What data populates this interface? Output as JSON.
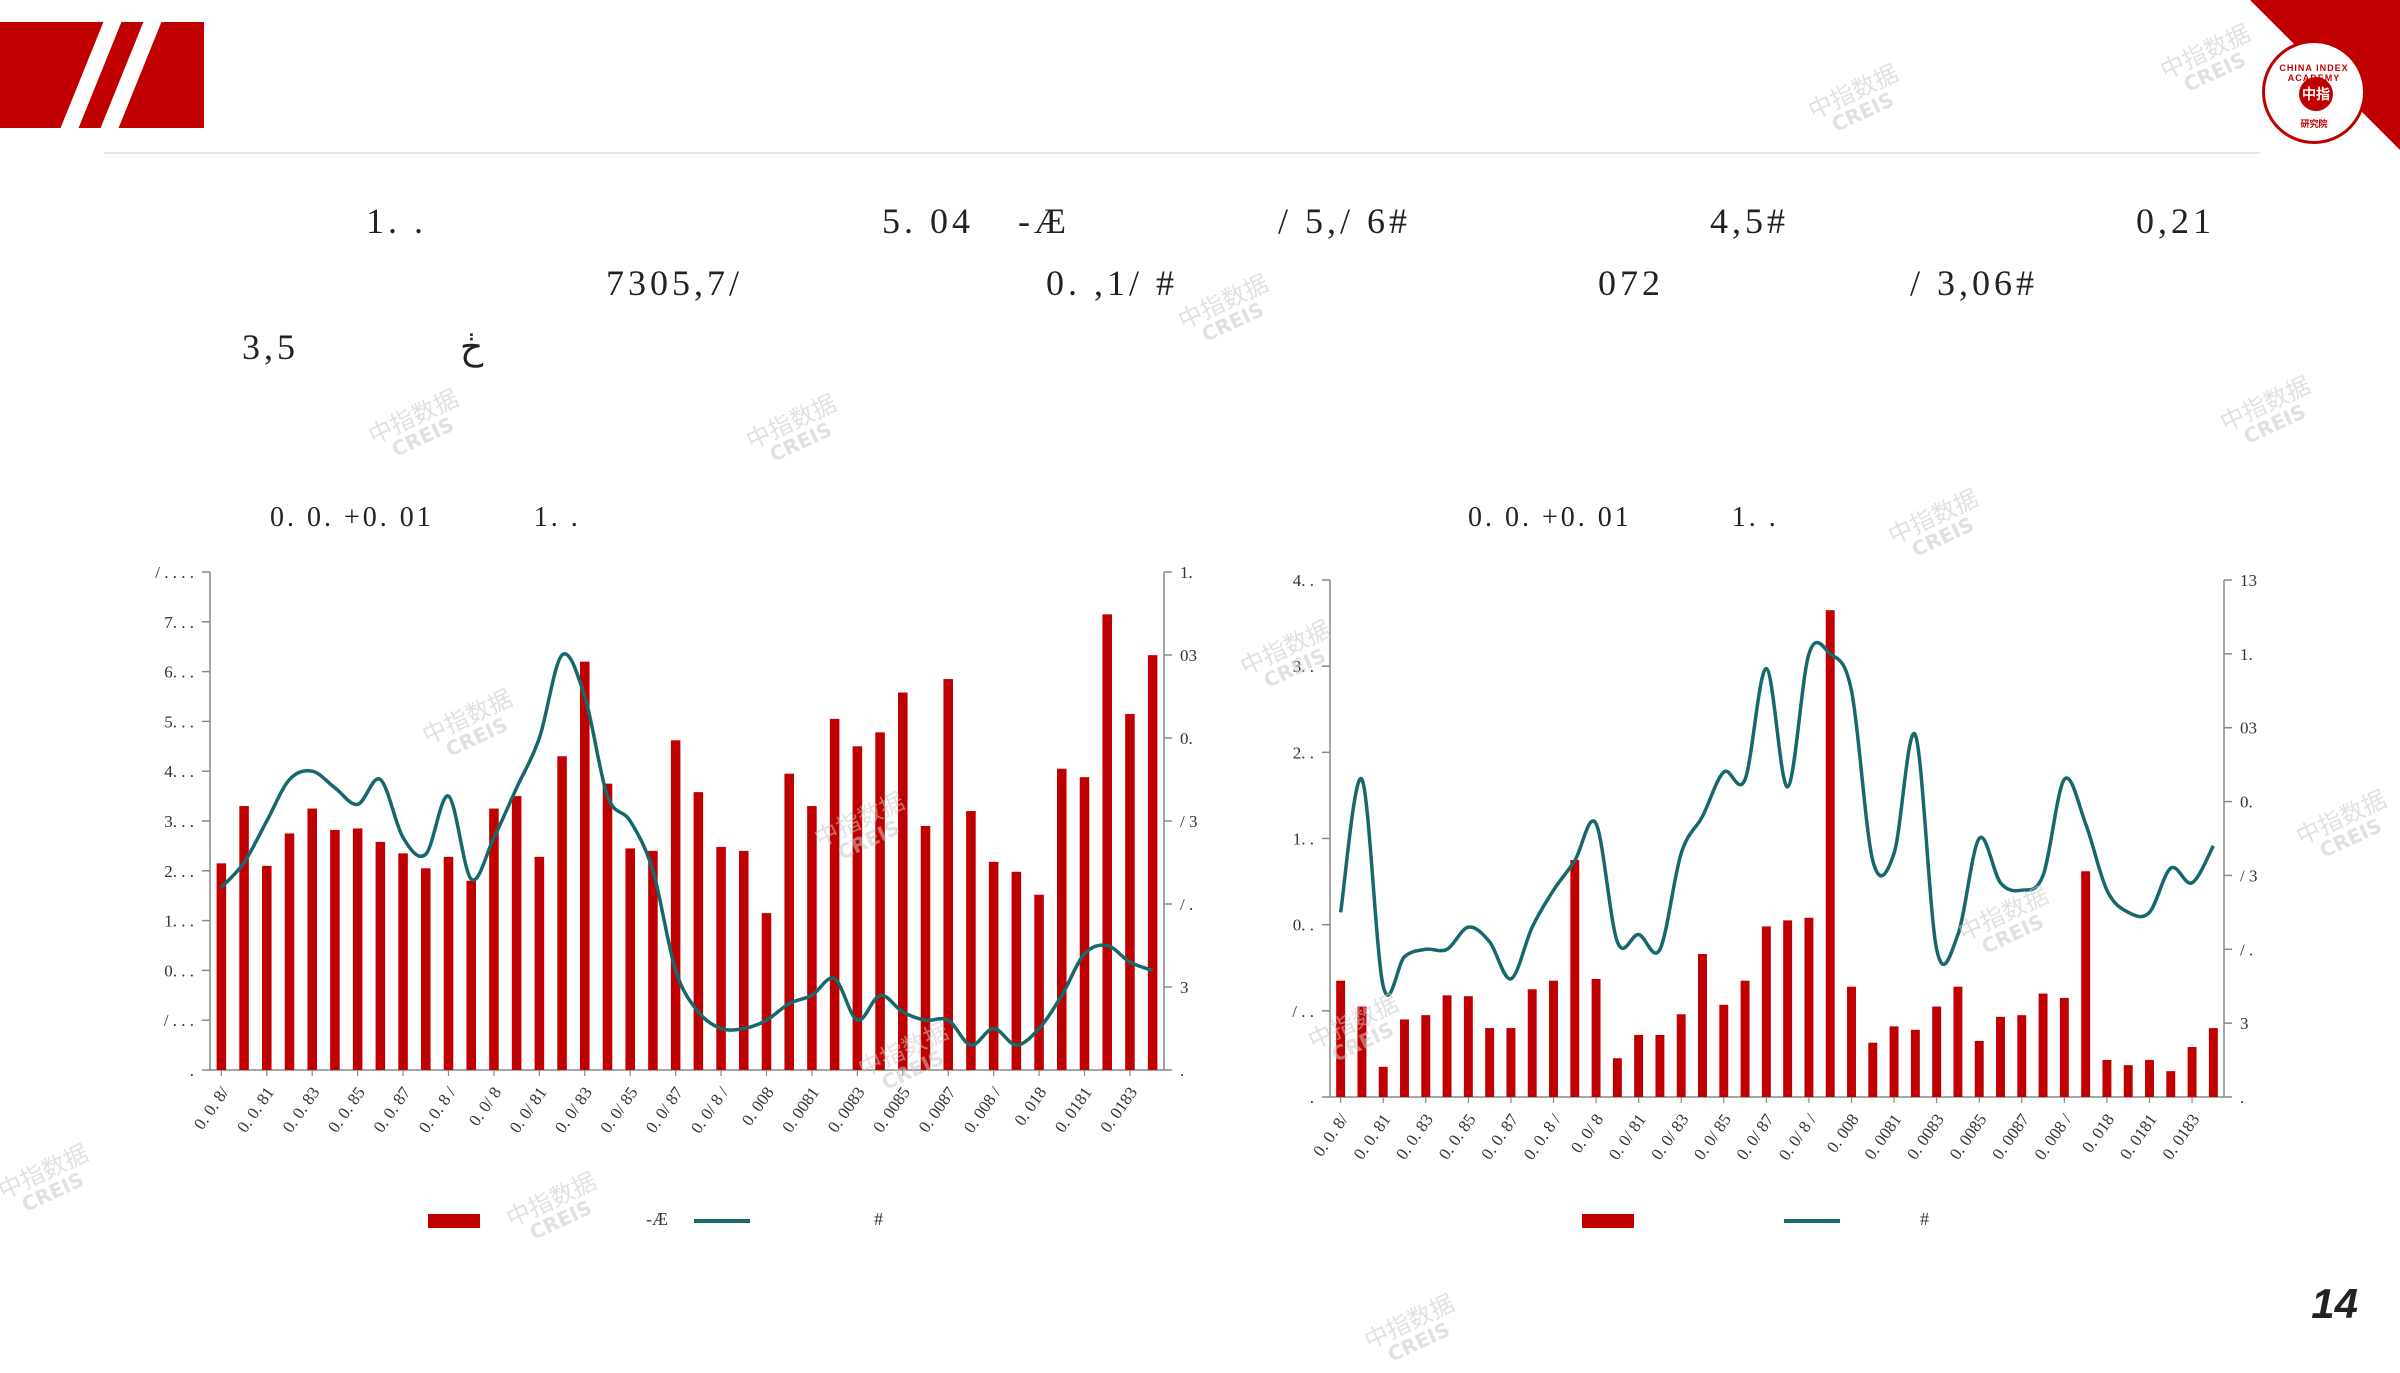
{
  "page": {
    "paragraph": [
      {
        "text": "1. .",
        "line": 0,
        "col": 0
      },
      {
        "text": "5. 04",
        "line": 0,
        "col": 1
      },
      {
        "text": "-Æ",
        "line": 0,
        "col": 2
      },
      {
        "text": "/ 5,/ 6#",
        "line": 0,
        "col": 3
      },
      {
        "text": "4,5#",
        "line": 0,
        "col": 4
      },
      {
        "text": "0,21",
        "line": 0,
        "col": 5
      },
      {
        "text": "7305,7/",
        "line": 1,
        "col": 0
      },
      {
        "text": "0. ,1/ #",
        "line": 1,
        "col": 1
      },
      {
        "text": "072",
        "line": 1,
        "col": 2
      },
      {
        "text": "/ 3,06#",
        "line": 1,
        "col": 3
      },
      {
        "text": "3,5",
        "line": 2,
        "col": 0
      },
      {
        "text": "ڂ",
        "line": 2,
        "col": 1
      }
    ],
    "page_number": "14",
    "watermark": {
      "cn": "中指数据",
      "en": "CREIS"
    },
    "logo": {
      "ring_text": "CHINA INDEX ACADEMY",
      "seal": "中指",
      "foot": "研究院"
    }
  },
  "colors": {
    "bar": "#c00000",
    "line": "#17686a",
    "accent": "#c00000"
  },
  "chart_data": [
    {
      "type": "bar",
      "title": "0. 0. +0. 01          1. .",
      "y_left_ticks": [
        "/ . . . .",
        "7. . .",
        "6. . .",
        "5. . .",
        "4. . .",
        "3. . .",
        "2. . .",
        "1. . .",
        "0. . .",
        "/ . . .",
        "."
      ],
      "y_right_ticks": [
        "1.",
        "03",
        "0.",
        "/ 3",
        "/ .",
        "3",
        "."
      ],
      "x_tick_labels": [
        "0. 0. 8/",
        "0. 0. 81",
        "0. 0. 83",
        "0. 0. 85",
        "0. 0. 87",
        "0. 0. 8 /",
        "0. 0/ 8",
        "0. 0/ 81",
        "0. 0/ 83",
        "0. 0/ 85",
        "0. 0/ 87",
        "0. 0/ 8 /",
        "0. 008",
        "0. 0081",
        "0. 0083",
        "0. 0085",
        "0. 0087",
        "0. 008 /",
        "0. 018",
        "0. 0181",
        "0. 0183"
      ],
      "ylim_left": [
        0,
        10000
      ],
      "ylim_right": [
        0,
        60
      ],
      "series": [
        {
          "name": "",
          "axis": "left",
          "type": "bar",
          "values": [
            4150,
            5300,
            4100,
            4750,
            5250,
            4820,
            4850,
            4580,
            4350,
            4050,
            4280,
            3800,
            5250,
            5500,
            4280,
            6300,
            8200,
            5750,
            4450,
            4400,
            6620,
            5580,
            4480,
            4400,
            3150,
            5950,
            5300,
            7050,
            6500,
            6780,
            7580,
            4900,
            7850,
            5200,
            4180,
            3980,
            3520,
            6050,
            5880,
            9150,
            7150,
            8330
          ]
        },
        {
          "name": "#",
          "axis": "right",
          "type": "line",
          "values": [
            22,
            25,
            30,
            35,
            36,
            34,
            32,
            35,
            28,
            26,
            33,
            23,
            28,
            34,
            40,
            50,
            45,
            33,
            30,
            24,
            12,
            7,
            5,
            5,
            6,
            8,
            9,
            11,
            6,
            9,
            7,
            6,
            6,
            3,
            5,
            3,
            5,
            9,
            14,
            15,
            13,
            12
          ]
        }
      ],
      "legend": [
        "",
        "-Æ",
        "#"
      ]
    },
    {
      "type": "bar",
      "title": "0. 0. +0. 01          1. .",
      "y_left_ticks": [
        "4. .",
        "3. .",
        "2. .",
        "1. .",
        "0. .",
        "/ . .",
        "."
      ],
      "y_right_ticks": [
        "13",
        "1.",
        "03",
        "0.",
        "/ 3",
        "/ .",
        "3",
        "."
      ],
      "x_tick_labels": [
        "0. 0. 8/",
        "0. 0. 81",
        "0. 0. 83",
        "0. 0. 85",
        "0. 0. 87",
        "0. 0. 8 /",
        "0. 0/ 8",
        "0. 0/ 81",
        "0. 0/ 83",
        "0. 0/ 85",
        "0. 0/ 87",
        "0. 0/ 8 /",
        "0. 008",
        "0. 0081",
        "0. 0083",
        "0. 0085",
        "0. 0087",
        "0. 008 /",
        "0. 018",
        "0. 0181",
        "0. 0183"
      ],
      "ylim_left": [
        0,
        600
      ],
      "ylim_right": [
        0,
        70
      ],
      "series": [
        {
          "name": "",
          "axis": "left",
          "type": "bar",
          "values": [
            135,
            105,
            35,
            90,
            95,
            118,
            117,
            80,
            80,
            125,
            135,
            275,
            137,
            45,
            72,
            72,
            96,
            166,
            107,
            135,
            198,
            205,
            208,
            565,
            128,
            63,
            82,
            78,
            105,
            128,
            65,
            93,
            95,
            120,
            115,
            262,
            43,
            37,
            43,
            30,
            58,
            80
          ]
        },
        {
          "name": "#",
          "axis": "right",
          "type": "line",
          "values": [
            25,
            43,
            15,
            19,
            20,
            20,
            23,
            21,
            16,
            23,
            28,
            32,
            37,
            21,
            22,
            20,
            33,
            38,
            44,
            43,
            58,
            42,
            60,
            60,
            55,
            32,
            33,
            49,
            20,
            22,
            35,
            29,
            28,
            30,
            43,
            37,
            28,
            25,
            25,
            31,
            29,
            34
          ]
        }
      ],
      "legend": [
        "",
        "",
        "#"
      ]
    }
  ]
}
